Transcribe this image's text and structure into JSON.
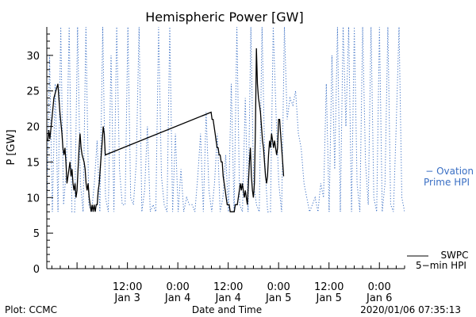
{
  "chart_data": {
    "type": "line",
    "title": "Hemispheric Power [GW]",
    "xlabel": "Date and Time",
    "ylabel": "P [GW]",
    "ylim": [
      0,
      34
    ],
    "yticks": [
      0,
      5,
      10,
      15,
      20,
      25,
      30
    ],
    "xlim": [
      -0.3,
      3.25
    ],
    "xticks": [
      {
        "x": 0.5,
        "line1": "12:00",
        "line2": "Jan 3"
      },
      {
        "x": 1.0,
        "line1": "0:00",
        "line2": "Jan 4"
      },
      {
        "x": 1.5,
        "line1": "12:00",
        "line2": "Jan 4"
      },
      {
        "x": 2.0,
        "line1": "0:00",
        "line2": "Jan 5"
      },
      {
        "x": 2.5,
        "line1": "12:00",
        "line2": "Jan 5"
      },
      {
        "x": 3.0,
        "line1": "0:00",
        "line2": "Jan 6"
      }
    ],
    "x_units": "days since 2020-01-02 12:00 UT",
    "grid": false,
    "legend_placement": "right",
    "series": [
      {
        "name": "SWPC 5-min HPI",
        "label_lines": [
          "SWPC",
          "5−min HPI"
        ],
        "color": "#000000",
        "style": "solid",
        "points": [
          [
            -0.29,
            18
          ],
          [
            -0.28,
            19.5
          ],
          [
            -0.27,
            18.2
          ],
          [
            -0.25,
            21
          ],
          [
            -0.23,
            24
          ],
          [
            -0.21,
            25
          ],
          [
            -0.19,
            26
          ],
          [
            -0.18,
            24
          ],
          [
            -0.17,
            22
          ],
          [
            -0.15,
            19
          ],
          [
            -0.14,
            17
          ],
          [
            -0.13,
            16
          ],
          [
            -0.12,
            17
          ],
          [
            -0.11,
            15
          ],
          [
            -0.1,
            12
          ],
          [
            -0.09,
            13
          ],
          [
            -0.08,
            14
          ],
          [
            -0.07,
            15
          ],
          [
            -0.06,
            13
          ],
          [
            -0.05,
            14
          ],
          [
            -0.04,
            12
          ],
          [
            -0.03,
            11
          ],
          [
            -0.02,
            12
          ],
          [
            -0.01,
            10
          ],
          [
            0.0,
            11
          ],
          [
            0.01,
            14
          ],
          [
            0.02,
            17
          ],
          [
            0.03,
            19
          ],
          [
            0.04,
            17
          ],
          [
            0.05,
            16
          ],
          [
            0.07,
            15
          ],
          [
            0.08,
            14
          ],
          [
            0.09,
            12
          ],
          [
            0.1,
            11
          ],
          [
            0.11,
            12
          ],
          [
            0.12,
            10
          ],
          [
            0.13,
            9
          ],
          [
            0.14,
            8
          ],
          [
            0.15,
            9
          ],
          [
            0.16,
            8
          ],
          [
            0.17,
            9
          ],
          [
            0.18,
            8
          ],
          [
            0.19,
            9
          ],
          [
            0.2,
            9
          ],
          [
            0.21,
            11
          ],
          [
            0.22,
            12
          ],
          [
            0.23,
            14
          ],
          [
            0.24,
            16
          ],
          [
            0.25,
            18
          ],
          [
            0.26,
            20
          ],
          [
            0.27,
            19
          ],
          [
            0.28,
            16
          ],
          [
            1.33,
            22
          ],
          [
            1.34,
            21
          ],
          [
            1.35,
            21
          ],
          [
            1.36,
            20
          ],
          [
            1.37,
            19
          ],
          [
            1.38,
            18
          ],
          [
            1.39,
            17
          ],
          [
            1.4,
            17
          ],
          [
            1.41,
            16
          ],
          [
            1.42,
            16
          ],
          [
            1.43,
            15
          ],
          [
            1.44,
            15
          ],
          [
            1.45,
            13
          ],
          [
            1.46,
            12
          ],
          [
            1.47,
            11
          ],
          [
            1.48,
            10
          ],
          [
            1.49,
            9
          ],
          [
            1.5,
            9
          ],
          [
            1.51,
            9
          ],
          [
            1.52,
            8
          ],
          [
            1.53,
            8
          ],
          [
            1.54,
            8
          ],
          [
            1.55,
            8
          ],
          [
            1.56,
            8
          ],
          [
            1.57,
            9
          ],
          [
            1.58,
            9
          ],
          [
            1.59,
            9
          ],
          [
            1.6,
            10
          ],
          [
            1.61,
            11
          ],
          [
            1.62,
            12
          ],
          [
            1.63,
            11
          ],
          [
            1.64,
            12
          ],
          [
            1.65,
            11
          ],
          [
            1.66,
            10
          ],
          [
            1.67,
            11
          ],
          [
            1.68,
            10
          ],
          [
            1.69,
            9
          ],
          [
            1.7,
            12
          ],
          [
            1.71,
            15
          ],
          [
            1.72,
            17
          ],
          [
            1.73,
            13
          ],
          [
            1.74,
            11
          ],
          [
            1.75,
            10
          ],
          [
            1.76,
            12
          ],
          [
            1.77,
            20
          ],
          [
            1.78,
            31
          ],
          [
            1.79,
            26
          ],
          [
            1.8,
            24
          ],
          [
            1.81,
            23
          ],
          [
            1.82,
            22
          ],
          [
            1.83,
            20
          ],
          [
            1.84,
            18
          ],
          [
            1.85,
            17
          ],
          [
            1.86,
            15
          ],
          [
            1.87,
            13
          ],
          [
            1.88,
            12
          ],
          [
            1.89,
            13
          ],
          [
            1.9,
            16
          ],
          [
            1.91,
            18
          ],
          [
            1.92,
            17
          ],
          [
            1.93,
            19
          ],
          [
            1.94,
            18
          ],
          [
            1.95,
            17
          ],
          [
            1.96,
            18
          ],
          [
            1.97,
            17
          ],
          [
            1.98,
            16
          ],
          [
            1.99,
            17
          ],
          [
            2.0,
            21
          ],
          [
            2.01,
            21
          ],
          [
            2.02,
            19
          ],
          [
            2.03,
            17
          ],
          [
            2.04,
            15
          ],
          [
            2.05,
            13
          ]
        ]
      },
      {
        "name": "Ovation Prime HPI",
        "label_lines": [
          "− Ovation",
          "Prime HPI"
        ],
        "color": "#3a6fc4",
        "style": "dotted",
        "values_y": [
          8,
          30,
          8,
          26,
          8,
          34,
          9,
          14,
          34,
          8,
          8,
          34,
          12,
          8,
          34,
          9,
          8,
          12,
          18,
          8,
          34,
          10,
          8,
          30,
          8,
          34,
          14,
          9,
          9,
          34,
          10,
          9,
          15,
          34,
          8,
          11,
          20,
          8,
          9,
          8,
          34,
          13,
          9,
          8,
          34,
          8,
          19,
          8,
          14,
          8,
          10,
          9,
          9,
          8,
          13,
          19,
          8,
          22,
          11,
          8,
          12,
          19,
          8,
          10,
          16,
          8,
          26,
          8,
          34,
          9,
          8,
          24,
          8,
          34,
          12,
          9,
          8,
          34,
          15,
          8,
          8,
          34,
          22,
          12,
          8,
          34,
          21,
          24,
          23,
          25,
          19,
          17,
          12,
          10,
          8,
          9,
          10,
          8,
          12,
          10,
          26,
          8,
          30,
          14,
          34,
          8,
          34,
          20,
          34,
          8,
          34,
          12,
          8,
          34,
          15,
          9,
          34,
          10,
          8,
          34,
          8,
          12,
          34,
          9,
          8,
          20,
          34,
          10,
          8
        ]
      }
    ]
  },
  "footer": {
    "left": "Plot: CCMC",
    "center": "Date and Time",
    "right": "2020/01/06 07:35:13"
  }
}
